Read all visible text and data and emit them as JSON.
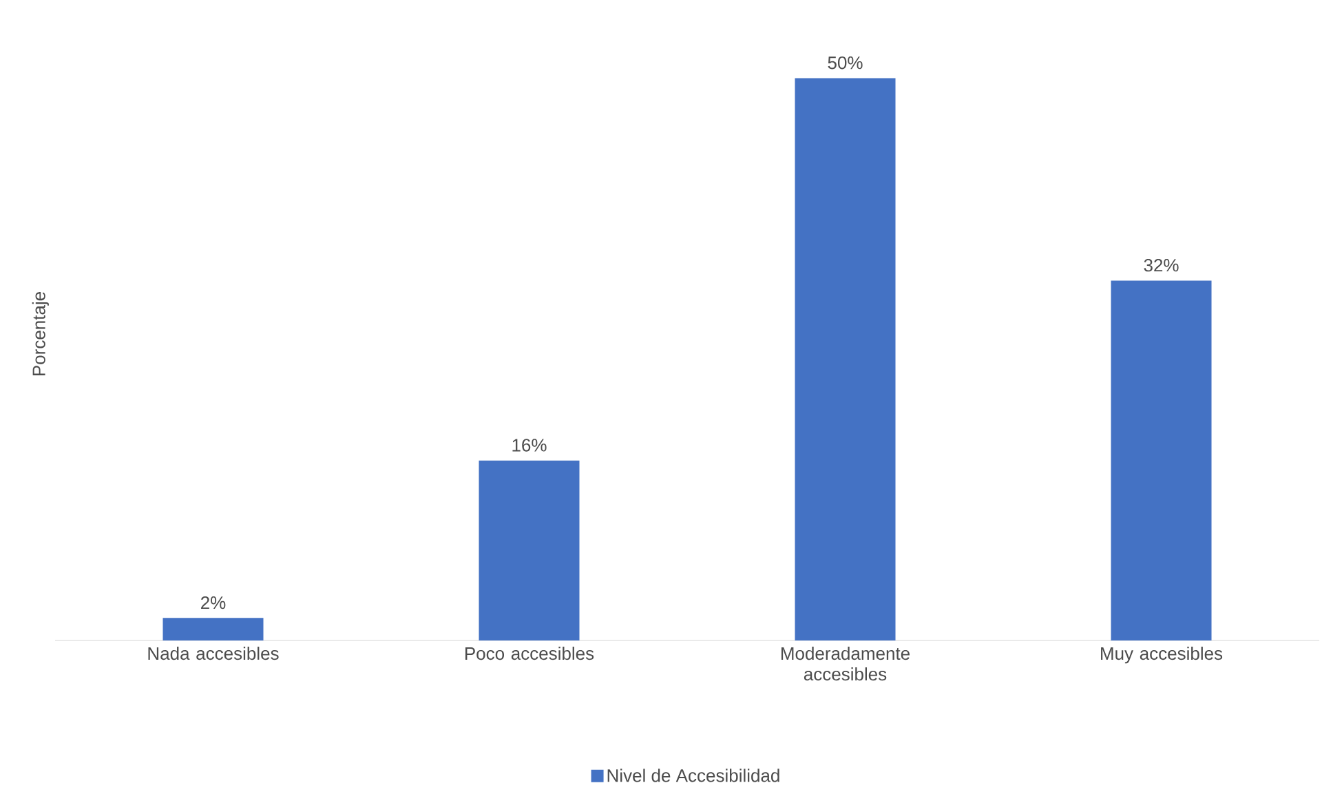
{
  "chart_data": {
    "type": "bar",
    "ylabel": "Porcentaje",
    "categories": [
      "Nada accesibles",
      "Poco accesibles",
      "Moderadamente accesibles",
      "Muy accesibles"
    ],
    "series": [
      {
        "name": "Nivel de Accesibilidad",
        "color": "#4472c4",
        "values": [
          2,
          16,
          50,
          32
        ],
        "value_labels": [
          "2%",
          "16%",
          "50%",
          "32%"
        ]
      }
    ],
    "legend": "bottom"
  }
}
